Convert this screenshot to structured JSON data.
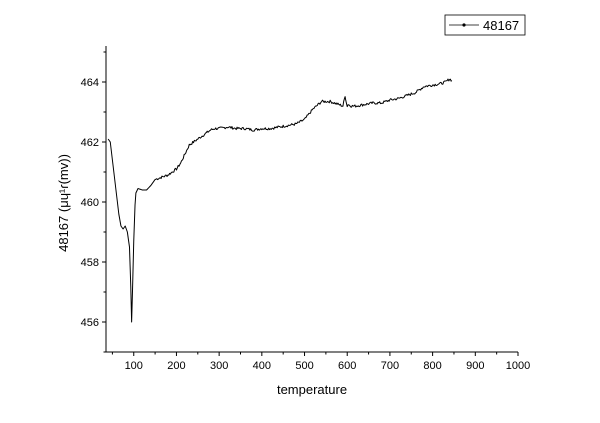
{
  "chart_data": {
    "type": "line",
    "title": "",
    "xlabel": "temperature",
    "ylabel": "48167 (μɥ¹ɾ(mv))",
    "xlim": [
      35,
      1000
    ],
    "ylim": [
      455,
      465.2
    ],
    "x_ticks": [
      100,
      200,
      300,
      400,
      500,
      600,
      700,
      800,
      900,
      1000
    ],
    "y_ticks": [
      456,
      458,
      460,
      462,
      464
    ],
    "grid": false,
    "legend": {
      "position": "top-right",
      "entries": [
        "48167"
      ]
    },
    "line_color": "#000000",
    "series": [
      {
        "name": "48167",
        "x": [
          40,
          45,
          50,
          55,
          60,
          65,
          70,
          75,
          80,
          85,
          90,
          93,
          95,
          97,
          100,
          103,
          105,
          110,
          120,
          130,
          140,
          150,
          160,
          170,
          180,
          190,
          200,
          210,
          220,
          230,
          240,
          250,
          260,
          270,
          280,
          290,
          300,
          320,
          340,
          360,
          380,
          400,
          420,
          440,
          460,
          480,
          500,
          520,
          540,
          560,
          580,
          590,
          595,
          598,
          600,
          602,
          610,
          620,
          640,
          660,
          680,
          700,
          720,
          740,
          760,
          780,
          800,
          820,
          830,
          840,
          845
        ],
        "y": [
          462.1,
          462.0,
          461.4,
          460.8,
          460.2,
          459.6,
          459.2,
          459.1,
          459.2,
          459.0,
          458.5,
          457.2,
          456.0,
          457.0,
          458.7,
          459.9,
          460.3,
          460.45,
          460.4,
          460.4,
          460.55,
          460.75,
          460.8,
          460.85,
          460.9,
          461.0,
          461.1,
          461.3,
          461.6,
          461.9,
          462.0,
          462.1,
          462.2,
          462.3,
          462.4,
          462.45,
          462.45,
          462.5,
          462.45,
          462.45,
          462.4,
          462.45,
          462.45,
          462.5,
          462.55,
          462.6,
          462.75,
          463.1,
          463.35,
          463.35,
          463.25,
          463.2,
          463.55,
          463.3,
          463.2,
          463.25,
          463.2,
          463.2,
          463.25,
          463.3,
          463.3,
          463.4,
          463.45,
          463.55,
          463.65,
          463.85,
          463.9,
          463.95,
          464.0,
          464.1,
          464.05
        ]
      }
    ]
  }
}
